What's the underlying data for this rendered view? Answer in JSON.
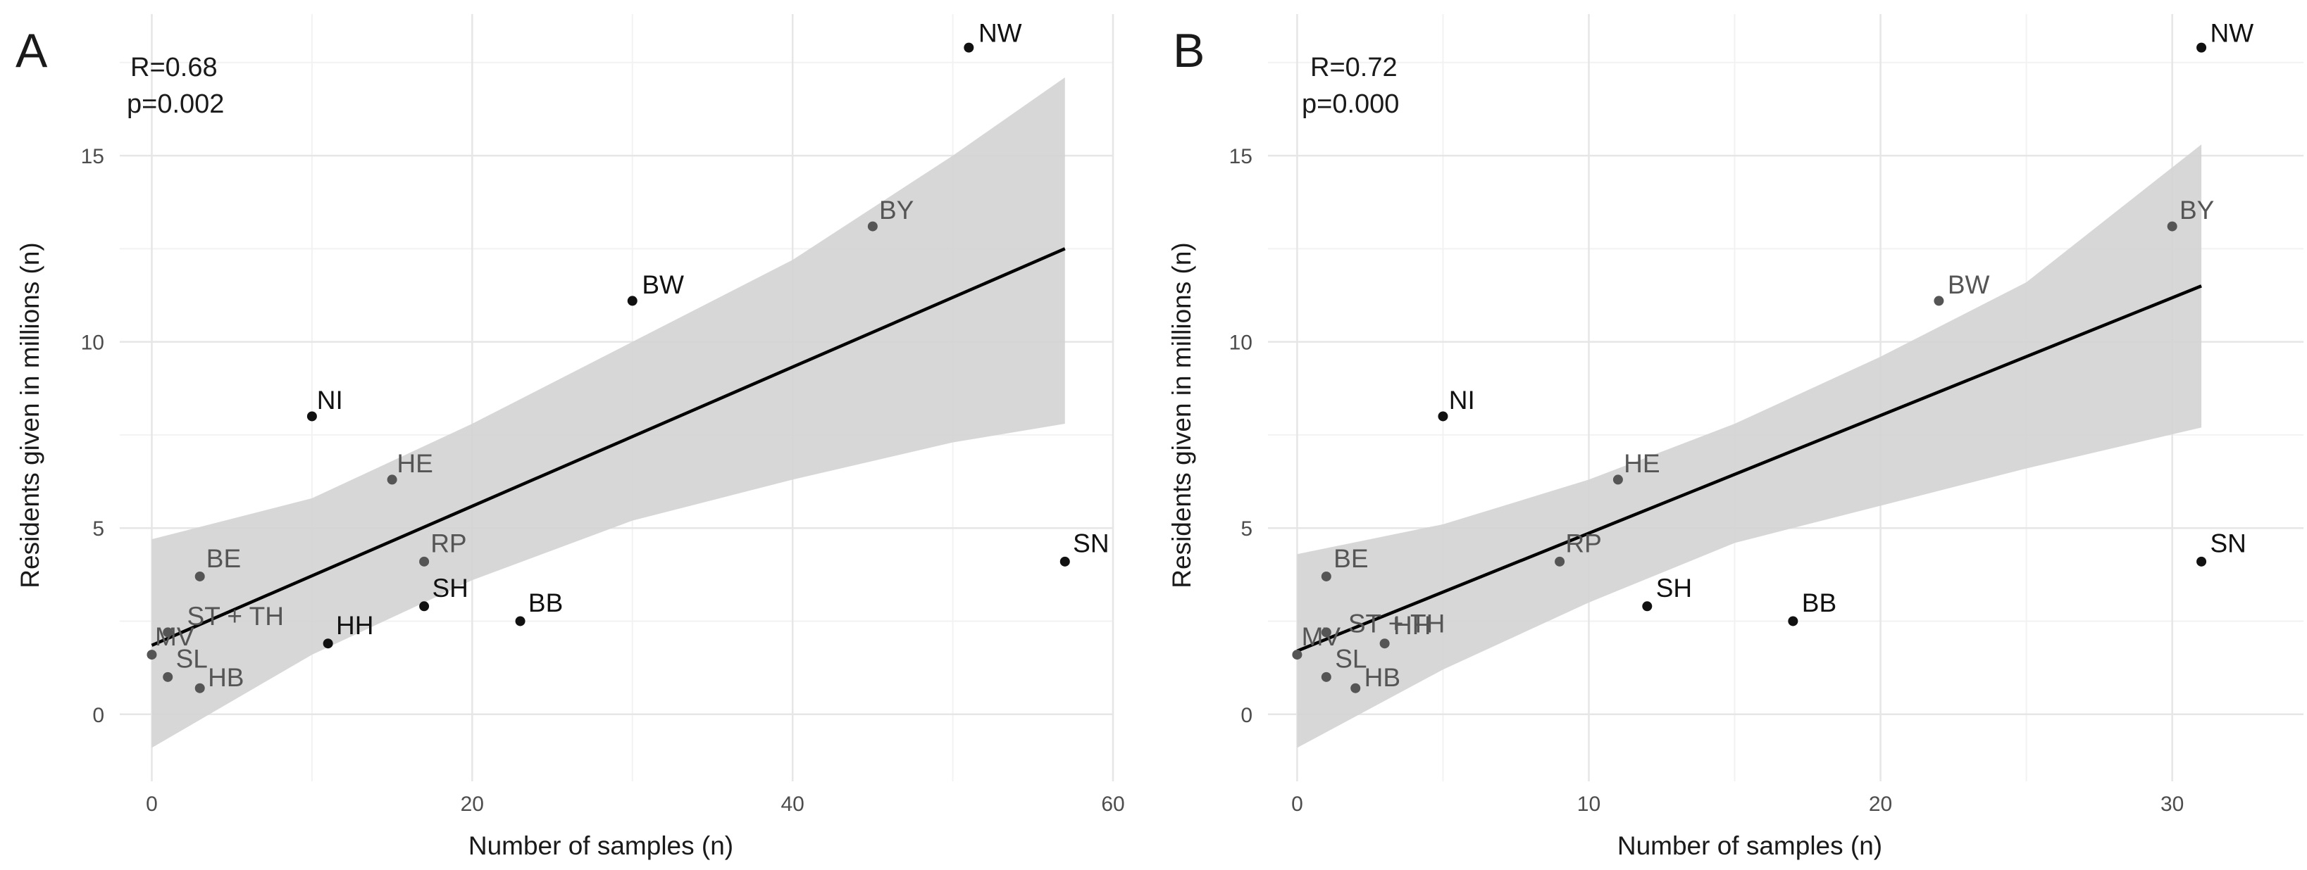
{
  "figure": {
    "background": "#ffffff",
    "grid_major": "#e6e6e6",
    "grid_minor": "#f2f2f2",
    "band_color": "#d3d3d3",
    "line_color": "#000000",
    "label_dark": "#111111",
    "label_gray": "#555555"
  },
  "chart_data": [
    {
      "panel": "A",
      "type": "scatter",
      "title": "",
      "xlabel": "Number of samples (n)",
      "ylabel": "Residents given in millions (n)",
      "xlim": [
        -2,
        60
      ],
      "ylim": [
        -1.8,
        18.8
      ],
      "xticks": [
        0,
        20,
        40,
        60
      ],
      "yticks": [
        0,
        5,
        10,
        15
      ],
      "stats": {
        "r": "R=0.68",
        "p": "p=0.002"
      },
      "points": [
        {
          "label": "NW",
          "x": 51,
          "y": 17.9,
          "lx": 0.6,
          "ly": 0.15,
          "tone": "dark"
        },
        {
          "label": "BY",
          "x": 45,
          "y": 13.1,
          "lx": 0.4,
          "ly": 0.2,
          "tone": "gray"
        },
        {
          "label": "BW",
          "x": 30,
          "y": 11.1,
          "lx": 0.6,
          "ly": 0.2,
          "tone": "dark"
        },
        {
          "label": "NI",
          "x": 10,
          "y": 8.0,
          "lx": 0.3,
          "ly": 0.2,
          "tone": "dark"
        },
        {
          "label": "HE",
          "x": 15,
          "y": 6.3,
          "lx": 0.3,
          "ly": 0.2,
          "tone": "gray"
        },
        {
          "label": "SN",
          "x": 57,
          "y": 4.1,
          "lx": 0.5,
          "ly": 0.25,
          "tone": "dark"
        },
        {
          "label": "RP",
          "x": 17,
          "y": 4.1,
          "lx": 0.4,
          "ly": 0.25,
          "tone": "gray"
        },
        {
          "label": "BE",
          "x": 3,
          "y": 3.7,
          "lx": 0.4,
          "ly": 0.25,
          "tone": "gray"
        },
        {
          "label": "SH",
          "x": 17,
          "y": 2.9,
          "lx": 0.5,
          "ly": 0.25,
          "tone": "dark"
        },
        {
          "label": "BB",
          "x": 23,
          "y": 2.5,
          "lx": 0.5,
          "ly": 0.25,
          "tone": "dark"
        },
        {
          "label": "ST + TH",
          "x": 1,
          "y": 2.2,
          "lx": 1.2,
          "ly": 0.2,
          "tone": "gray"
        },
        {
          "label": "HH",
          "x": 11,
          "y": 1.9,
          "lx": 0.5,
          "ly": 0.25,
          "tone": "dark"
        },
        {
          "label": "MV",
          "x": 0,
          "y": 1.6,
          "lx": 0.2,
          "ly": 0.25,
          "tone": "gray"
        },
        {
          "label": "SL",
          "x": 1,
          "y": 1.0,
          "lx": 0.5,
          "ly": 0.25,
          "tone": "gray"
        },
        {
          "label": "HB",
          "x": 3,
          "y": 0.7,
          "lx": 0.5,
          "ly": 0.05,
          "tone": "gray"
        }
      ],
      "fit_line": {
        "x": [
          0,
          57
        ],
        "y": [
          1.85,
          12.5
        ]
      },
      "confidence_band": {
        "x": [
          0,
          10,
          20,
          30,
          40,
          50,
          57
        ],
        "upper": [
          4.7,
          5.8,
          7.8,
          10.0,
          12.2,
          15.0,
          17.1
        ],
        "lower": [
          -0.9,
          1.6,
          3.6,
          5.2,
          6.3,
          7.3,
          7.8
        ]
      }
    },
    {
      "panel": "B",
      "type": "scatter",
      "title": "",
      "xlabel": "Number of samples (n)",
      "ylabel": "Residents given in millions (n)",
      "xlim": [
        -1,
        34.5
      ],
      "ylim": [
        -1.8,
        18.8
      ],
      "xticks": [
        0,
        10,
        20,
        30
      ],
      "yticks": [
        0,
        5,
        10,
        15
      ],
      "stats": {
        "r": "R=0.72",
        "p": "p=0.000"
      },
      "points": [
        {
          "label": "NW",
          "x": 31,
          "y": 17.9,
          "lx": 0.3,
          "ly": 0.15,
          "tone": "dark"
        },
        {
          "label": "BY",
          "x": 30,
          "y": 13.1,
          "lx": 0.25,
          "ly": 0.2,
          "tone": "gray"
        },
        {
          "label": "BW",
          "x": 22,
          "y": 11.1,
          "lx": 0.3,
          "ly": 0.2,
          "tone": "gray"
        },
        {
          "label": "NI",
          "x": 5,
          "y": 8.0,
          "lx": 0.2,
          "ly": 0.2,
          "tone": "dark"
        },
        {
          "label": "HE",
          "x": 11,
          "y": 6.3,
          "lx": 0.2,
          "ly": 0.2,
          "tone": "gray"
        },
        {
          "label": "SN",
          "x": 31,
          "y": 4.1,
          "lx": 0.3,
          "ly": 0.25,
          "tone": "dark"
        },
        {
          "label": "RP",
          "x": 9,
          "y": 4.1,
          "lx": 0.2,
          "ly": 0.25,
          "tone": "gray"
        },
        {
          "label": "BE",
          "x": 1,
          "y": 3.7,
          "lx": 0.25,
          "ly": 0.25,
          "tone": "gray"
        },
        {
          "label": "SH",
          "x": 12,
          "y": 2.9,
          "lx": 0.3,
          "ly": 0.25,
          "tone": "dark"
        },
        {
          "label": "BB",
          "x": 17,
          "y": 2.5,
          "lx": 0.3,
          "ly": 0.25,
          "tone": "dark"
        },
        {
          "label": "ST + TH",
          "x": 1,
          "y": 2.2,
          "lx": 0.75,
          "ly": 0.0,
          "tone": "gray"
        },
        {
          "label": "HH",
          "x": 3,
          "y": 1.9,
          "lx": 0.3,
          "ly": 0.25,
          "tone": "gray"
        },
        {
          "label": "MV",
          "x": 0,
          "y": 1.6,
          "lx": 0.15,
          "ly": 0.25,
          "tone": "gray"
        },
        {
          "label": "SL",
          "x": 1,
          "y": 1.0,
          "lx": 0.3,
          "ly": 0.25,
          "tone": "gray"
        },
        {
          "label": "HB",
          "x": 2,
          "y": 0.7,
          "lx": 0.3,
          "ly": 0.05,
          "tone": "gray"
        }
      ],
      "fit_line": {
        "x": [
          0,
          31
        ],
        "y": [
          1.7,
          11.5
        ]
      },
      "confidence_band": {
        "x": [
          0,
          5,
          10,
          15,
          20,
          25,
          31
        ],
        "upper": [
          4.3,
          5.1,
          6.3,
          7.8,
          9.6,
          11.6,
          15.3
        ],
        "lower": [
          -0.9,
          1.2,
          3.0,
          4.6,
          5.6,
          6.6,
          7.7
        ]
      }
    }
  ]
}
